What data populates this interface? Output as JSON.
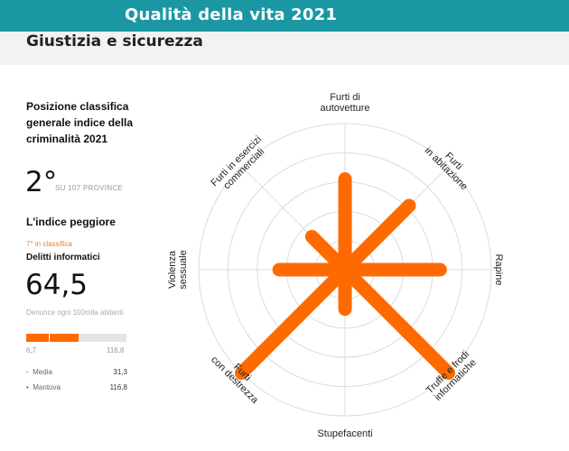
{
  "header": {
    "title": "Qualità della vita 2021"
  },
  "section": {
    "title": "Giustizia e sicurezza"
  },
  "ranking": {
    "label": "Posizione classifica generale indice della criminalità 2021",
    "value": "2°",
    "suffix": "SU 107 PROVINCE"
  },
  "worst": {
    "title": "L'indice peggiore",
    "rank": "7° in classifica",
    "name": "Delitti informatici",
    "value": "64,5",
    "unit": "Denunce ogni 100mila abitanti",
    "bar": {
      "min_label": "6,7",
      "max_label": "116,8",
      "min": 6.7,
      "max": 116.8,
      "value": 64.5,
      "media": 31.3
    },
    "legend": [
      {
        "marker": "-",
        "label": "Media",
        "value": "31,3"
      },
      {
        "marker": "•",
        "label": "Mantova",
        "value": "116,8"
      }
    ]
  },
  "colors": {
    "header": "#1b97a3",
    "accent": "#ff6a00",
    "accent_text": "#f57a1a"
  },
  "chart_data": {
    "type": "radar",
    "title": "",
    "grid": true,
    "rmax": 1,
    "rings": 5,
    "axes": [
      {
        "label": [
          "Furti di",
          "autovetture"
        ],
        "value": 0.62
      },
      {
        "label": [
          "Furti",
          "in abitazione"
        ],
        "value": 0.62
      },
      {
        "label": [
          "Rapine"
        ],
        "value": 0.65
      },
      {
        "label": [
          "Truffe e frodi",
          "informatiche"
        ],
        "value": 1.0
      },
      {
        "label": [
          "Stupefacenti"
        ],
        "value": 0.27
      },
      {
        "label": [
          "Furti",
          "con destrezza"
        ],
        "value": 1.0
      },
      {
        "label": [
          "Violenza",
          "sessuale"
        ],
        "value": 0.45
      },
      {
        "label": [
          "Furti in esercizi",
          "commerciali"
        ],
        "value": 0.32
      }
    ]
  }
}
